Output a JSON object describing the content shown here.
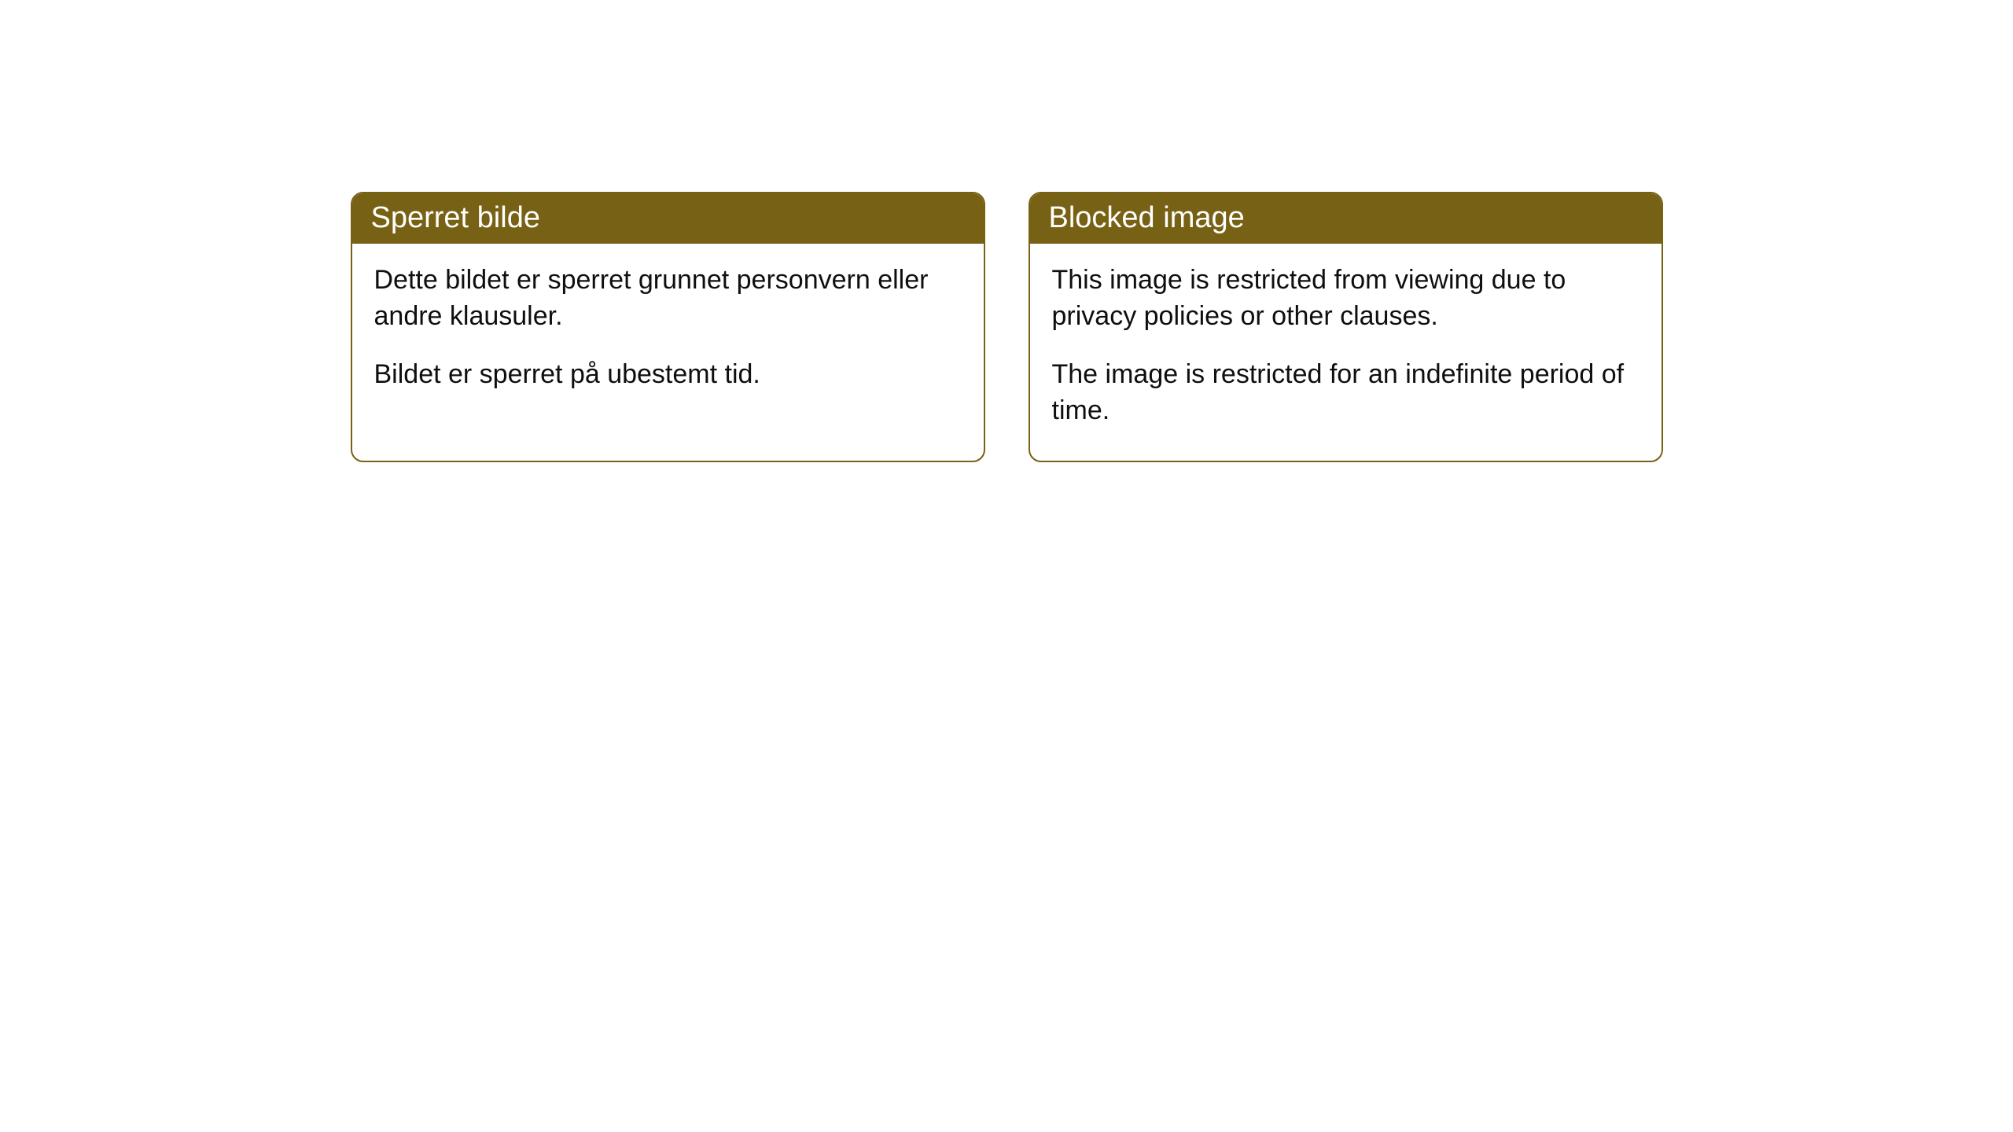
{
  "cards": [
    {
      "title": "Sperret bilde",
      "paragraph1": "Dette bildet er sperret grunnet personvern eller andre klausuler.",
      "paragraph2": "Bildet er sperret på ubestemt tid."
    },
    {
      "title": "Blocked image",
      "paragraph1": "This image is restricted from viewing due to privacy policies or other clauses.",
      "paragraph2": "The image is restricted for an indefinite period of time."
    }
  ],
  "style": {
    "header_bg_color": "#776114",
    "header_text_color": "#ffffff",
    "border_color": "#776114",
    "body_bg_color": "#ffffff",
    "body_text_color": "#0f0f0f",
    "border_radius": 16,
    "header_fontsize": 38,
    "body_fontsize": 34
  }
}
